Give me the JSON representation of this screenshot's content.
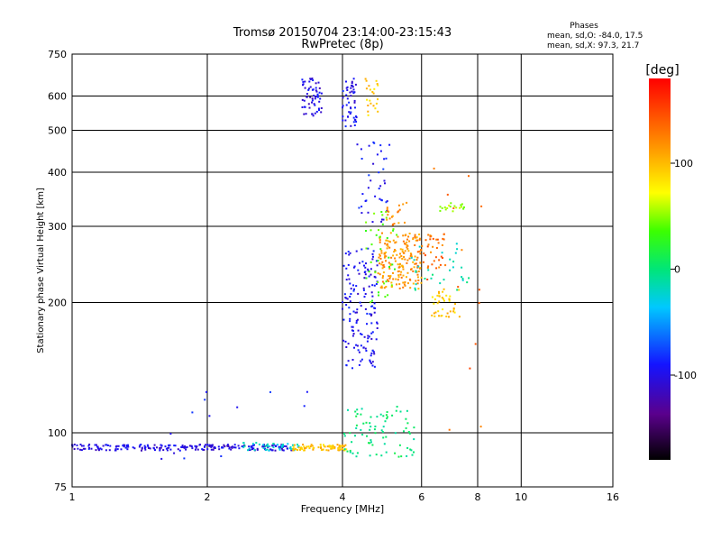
{
  "title": "Tromsø 20150704 23:14:00-23:15:43",
  "subtitle": "RwPretec (8p)",
  "phases": {
    "heading": "Phases",
    "line_o": "mean, sd,O: -84.0, 17.5",
    "line_x": "mean, sd,X:  97.3, 21.7"
  },
  "colorbar": {
    "title": "[deg]",
    "min": -180,
    "max": 180,
    "ticks": [
      {
        "value": 100,
        "label": "100"
      },
      {
        "value": 0,
        "label": "0"
      },
      {
        "value": -100,
        "label": "-100"
      }
    ]
  },
  "chart_data": {
    "type": "scatter",
    "title": "Tromsø 20150704 23:14:00-23:15:43",
    "subtitle": "RwPretec (8p)",
    "xlabel": "Frequency [MHz]",
    "ylabel": "Stationary phase Virtual Height [km]",
    "xscale": "log",
    "yscale": "log",
    "xlim": [
      1,
      16
    ],
    "ylim": [
      75,
      750
    ],
    "x_ticks": [
      {
        "value": 1,
        "label": "1"
      },
      {
        "value": 2,
        "label": "2"
      },
      {
        "value": 4,
        "label": "4"
      },
      {
        "value": 6,
        "label": "6"
      },
      {
        "value": 8,
        "label": "8"
      },
      {
        "value": 10,
        "label": "10"
      },
      {
        "value": 16,
        "label": "16"
      }
    ],
    "y_ticks": [
      {
        "value": 75,
        "label": "75"
      },
      {
        "value": 100,
        "label": "100"
      },
      {
        "value": 200,
        "label": "200"
      },
      {
        "value": 300,
        "label": "300"
      },
      {
        "value": 400,
        "label": "400"
      },
      {
        "value": 500,
        "label": "500"
      },
      {
        "value": 600,
        "label": "600"
      },
      {
        "value": 750,
        "label": "750"
      }
    ],
    "grid": true,
    "color_variable": "phase [deg]",
    "clusters": [
      {
        "name": "E-layer trace",
        "f_range": [
          1.0,
          3.1
        ],
        "h_range": [
          91,
          94
        ],
        "phase": -110,
        "n": 220
      },
      {
        "name": "E-layer trace (cyan part)",
        "f_range": [
          2.4,
          3.2
        ],
        "h_range": [
          91,
          95
        ],
        "phase": -25,
        "n": 40
      },
      {
        "name": "E-layer trace (yellow part)",
        "f_range": [
          3.1,
          4.1
        ],
        "h_range": [
          91,
          94
        ],
        "phase": 105,
        "n": 80
      },
      {
        "name": "Upper F trace low",
        "f_range": [
          3.25,
          3.6
        ],
        "h_range": [
          540,
          660
        ],
        "phase": -110,
        "n": 60
      },
      {
        "name": "Upper F trace high",
        "f_range": [
          4.0,
          4.3
        ],
        "h_range": [
          510,
          660
        ],
        "phase": -105,
        "n": 50
      },
      {
        "name": "Upper F trace yellow",
        "f_range": [
          4.5,
          4.8
        ],
        "h_range": [
          540,
          660
        ],
        "phase": 100,
        "n": 22
      },
      {
        "name": "F2 O-mode",
        "f_range": [
          4.0,
          4.8
        ],
        "h_range": [
          140,
          270
        ],
        "phase": -105,
        "n": 150
      },
      {
        "name": "F2 O-mode upper",
        "f_range": [
          4.3,
          5.1
        ],
        "h_range": [
          300,
          480
        ],
        "phase": -100,
        "n": 40
      },
      {
        "name": "F2 X-mode",
        "f_range": [
          4.8,
          6.0
        ],
        "h_range": [
          215,
          290
        ],
        "phase": 120,
        "n": 180
      },
      {
        "name": "F2 X-mode upper",
        "f_range": [
          5.0,
          5.6
        ],
        "h_range": [
          300,
          340
        ],
        "phase": 125,
        "n": 20
      },
      {
        "name": "F2 X-mode ridge",
        "f_range": [
          5.8,
          6.8
        ],
        "h_range": [
          240,
          290
        ],
        "phase": 135,
        "n": 45
      },
      {
        "name": "F2 Z-trace",
        "f_range": [
          6.5,
          7.5
        ],
        "h_range": [
          325,
          340
        ],
        "phase": 60,
        "n": 18
      },
      {
        "name": "F2 yellow tail",
        "f_range": [
          6.3,
          7.3
        ],
        "h_range": [
          185,
          215
        ],
        "phase": 100,
        "n": 40
      },
      {
        "name": "Mid green patch",
        "f_range": [
          4.5,
          5.3
        ],
        "h_range": [
          200,
          330
        ],
        "phase": 40,
        "n": 40
      },
      {
        "name": "Mid cyan patch",
        "f_range": [
          5.7,
          7.7
        ],
        "h_range": [
          210,
          280
        ],
        "phase": -15,
        "n": 30
      },
      {
        "name": "Sporadic E scatter",
        "f_range": [
          4.0,
          5.8
        ],
        "h_range": [
          88,
          115
        ],
        "phase": 0,
        "n": 80
      },
      {
        "name": "Far diffuse scatter",
        "f_range": [
          6.0,
          8.5
        ],
        "h_range": [
          100,
          420
        ],
        "phase": 140,
        "n": 14
      },
      {
        "name": "Stray points",
        "f_range": [
          1.2,
          3.7
        ],
        "h_range": [
          85,
          125
        ],
        "phase": -100,
        "n": 14
      }
    ]
  }
}
